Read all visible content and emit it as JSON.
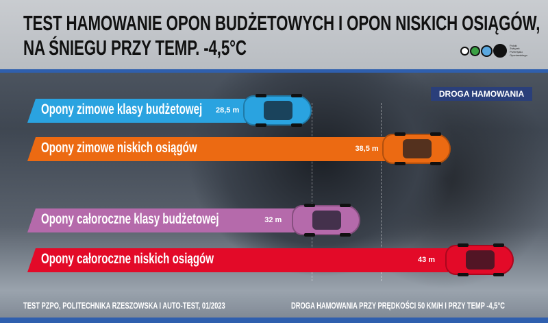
{
  "title_line1": "TEST HAMOWANIE OPON BUDŻETOWYCH I OPON NISKICH OSIĄGÓW,",
  "title_line2": "NA ŚNIEGU PRZY TEMP. -4,5°C",
  "logo": {
    "text": [
      "Polski",
      "Związek",
      "Przemysłu",
      "Oponiarskiego"
    ],
    "dot_colors": [
      "#ffffff",
      "#3aa043",
      "#5aa8e0",
      "#111111"
    ]
  },
  "legend_label": "DROGA HAMOWANIA",
  "chart_data": {
    "type": "bar",
    "orientation": "horizontal",
    "categories": [
      "Opony zimowe klasy budżetowej",
      "Opony zimowe niskich osiągów",
      "Opony całoroczne klasy budżetowej",
      "Opony całoroczne niskich osiągów"
    ],
    "values": [
      28.5,
      38.5,
      32,
      43
    ],
    "value_labels": [
      "28,5 m",
      "38,5 m",
      "32 m",
      "43 m"
    ],
    "unit": "m",
    "colors": [
      "#2aa3e0",
      "#ec6a12",
      "#b56aab",
      "#e30a28"
    ],
    "title": "DROGA HAMOWANIA"
  },
  "footer_left": "TEST PZPO, POLITECHNIKA RZESZOWSKA I AUTO-TEST, 01/2023",
  "footer_right": "DROGA HAMOWANIA PRZY PRĘDKOŚCI 50 KM/H I PRZY TEMP -4,5°C"
}
